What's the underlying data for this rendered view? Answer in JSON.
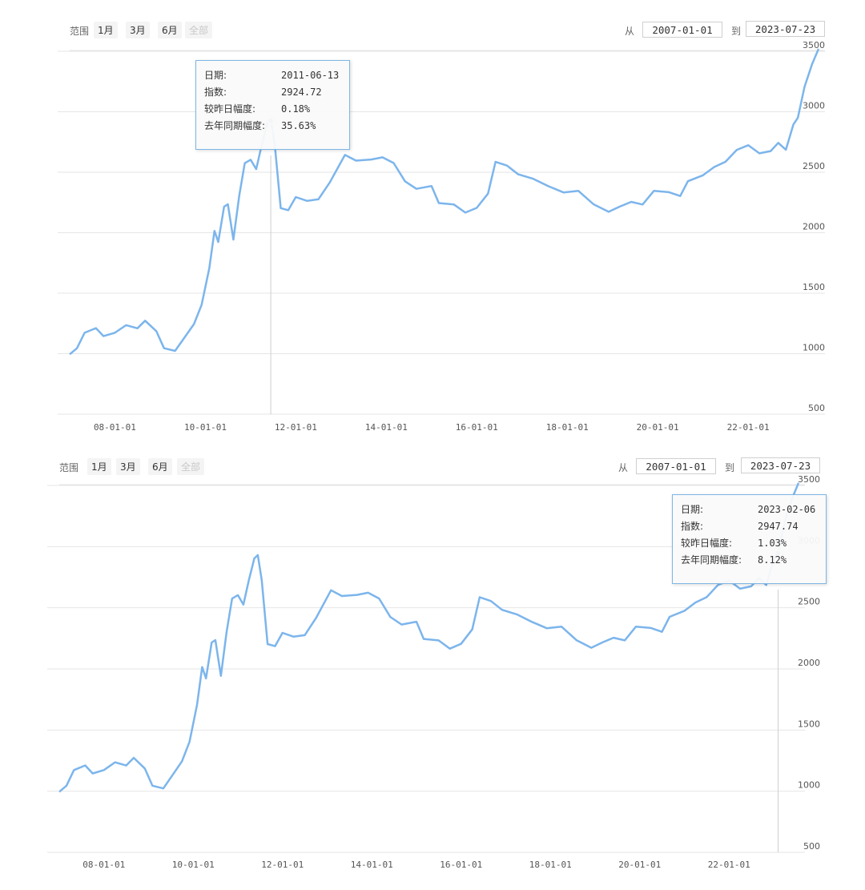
{
  "range_label": "范围",
  "range_buttons": [
    "1月",
    "3月",
    "6月",
    "全部"
  ],
  "from_label": "从",
  "to_label": "到",
  "from_date": "2007-01-01",
  "to_date": "2023-07-23",
  "colors": {
    "line": "#7cb5ec",
    "grid": "#e6e6e6",
    "tooltip_border": "#7eb6e5"
  },
  "chart_data": [
    {
      "type": "line",
      "x_tick_labels": [
        "08-01-01",
        "10-01-01",
        "12-01-01",
        "14-01-01",
        "16-01-01",
        "18-01-01",
        "20-01-01",
        "22-01-01"
      ],
      "y_tick_labels": [
        "500",
        "1000",
        "1500",
        "2000",
        "2500",
        "3000",
        "3500"
      ],
      "ylim": [
        500,
        3500
      ],
      "xlim": [
        "2007-01-01",
        "2023-07-23"
      ],
      "grid": true,
      "series": [
        {
          "points": [
            [
              "2007-01-01",
              995
            ],
            [
              "2007-03-01",
              1050
            ],
            [
              "2007-05-01",
              1170
            ],
            [
              "2007-08-01",
              1205
            ],
            [
              "2007-10-01",
              1150
            ],
            [
              "2008-01-01",
              1170
            ],
            [
              "2008-04-01",
              1230
            ],
            [
              "2008-07-01",
              1215
            ],
            [
              "2008-09-01",
              1270
            ],
            [
              "2008-12-01",
              1180
            ],
            [
              "2009-02-01",
              1050
            ],
            [
              "2009-05-01",
              1020
            ],
            [
              "2009-08-01",
              1150
            ],
            [
              "2009-10-01",
              1250
            ],
            [
              "2009-12-01",
              1400
            ],
            [
              "2010-02-01",
              1700
            ],
            [
              "2010-03-15",
              2020
            ],
            [
              "2010-04-15",
              1920
            ],
            [
              "2010-06-01",
              2210
            ],
            [
              "2010-07-01",
              2240
            ],
            [
              "2010-08-15",
              1940
            ],
            [
              "2010-10-01",
              2300
            ],
            [
              "2010-11-15",
              2580
            ],
            [
              "2011-01-01",
              2600
            ],
            [
              "2011-02-15",
              2520
            ],
            [
              "2011-04-01",
              2730
            ],
            [
              "2011-05-15",
              2900
            ],
            [
              "2011-06-13",
              2924.72
            ],
            [
              "2011-07-15",
              2730
            ],
            [
              "2011-09-01",
              2200
            ],
            [
              "2011-11-01",
              2180
            ],
            [
              "2012-01-01",
              2300
            ],
            [
              "2012-04-01",
              2260
            ],
            [
              "2012-07-01",
              2270
            ],
            [
              "2012-10-01",
              2420
            ],
            [
              "2013-02-01",
              2640
            ],
            [
              "2013-05-01",
              2590
            ],
            [
              "2013-09-01",
              2610
            ],
            [
              "2013-12-01",
              2620
            ],
            [
              "2014-03-01",
              2570
            ],
            [
              "2014-06-01",
              2430
            ],
            [
              "2014-09-01",
              2360
            ],
            [
              "2015-01-01",
              2380
            ],
            [
              "2015-03-01",
              2250
            ],
            [
              "2015-07-01",
              2230
            ],
            [
              "2015-10-01",
              2160
            ],
            [
              "2016-01-01",
              2210
            ],
            [
              "2016-04-01",
              2320
            ],
            [
              "2016-06-01",
              2580
            ],
            [
              "2016-09-01",
              2560
            ],
            [
              "2016-12-01",
              2480
            ],
            [
              "2017-04-01",
              2440
            ],
            [
              "2017-08-01",
              2390
            ],
            [
              "2017-12-01",
              2330
            ],
            [
              "2018-04-01",
              2340
            ],
            [
              "2018-08-01",
              2240
            ],
            [
              "2018-12-01",
              2170
            ],
            [
              "2019-03-01",
              2210
            ],
            [
              "2019-06-01",
              2260
            ],
            [
              "2019-09-01",
              2230
            ],
            [
              "2019-12-01",
              2340
            ],
            [
              "2020-04-01",
              2340
            ],
            [
              "2020-07-01",
              2300
            ],
            [
              "2020-09-01",
              2420
            ],
            [
              "2021-01-01",
              2480
            ],
            [
              "2021-04-01",
              2540
            ],
            [
              "2021-07-01",
              2580
            ],
            [
              "2021-10-01",
              2690
            ],
            [
              "2022-01-01",
              2720
            ],
            [
              "2022-04-01",
              2650
            ],
            [
              "2022-07-01",
              2680
            ],
            [
              "2022-09-01",
              2740
            ],
            [
              "2022-11-01",
              2680
            ],
            [
              "2023-01-01",
              2900
            ],
            [
              "2023-02-06",
              2947.74
            ],
            [
              "2023-04-01",
              3200
            ],
            [
              "2023-06-01",
              3400
            ],
            [
              "2023-07-23",
              3520
            ]
          ]
        }
      ],
      "tooltip": {
        "rows": [
          {
            "label": "日期:",
            "value": "2011-06-13"
          },
          {
            "label": "指数:",
            "value": "2924.72"
          },
          {
            "label": "较昨日幅度:",
            "value": "0.18%"
          },
          {
            "label": "去年同期幅度:",
            "value": "35.63%"
          }
        ]
      }
    },
    {
      "type": "line",
      "x_tick_labels": [
        "08-01-01",
        "10-01-01",
        "12-01-01",
        "14-01-01",
        "16-01-01",
        "18-01-01",
        "20-01-01",
        "22-01-01"
      ],
      "y_tick_labels": [
        "500",
        "1000",
        "1500",
        "2000",
        "2500",
        "3000",
        "3500"
      ],
      "ylim": [
        500,
        3500
      ],
      "xlim": [
        "2007-01-01",
        "2023-07-23"
      ],
      "grid": true,
      "series": [
        {
          "same_as_chart": 0
        }
      ],
      "tooltip": {
        "rows": [
          {
            "label": "日期:",
            "value": "2023-02-06"
          },
          {
            "label": "指数:",
            "value": "2947.74"
          },
          {
            "label": "较昨日幅度:",
            "value": "1.03%"
          },
          {
            "label": "去年同期幅度:",
            "value": "8.12%"
          }
        ]
      }
    }
  ]
}
